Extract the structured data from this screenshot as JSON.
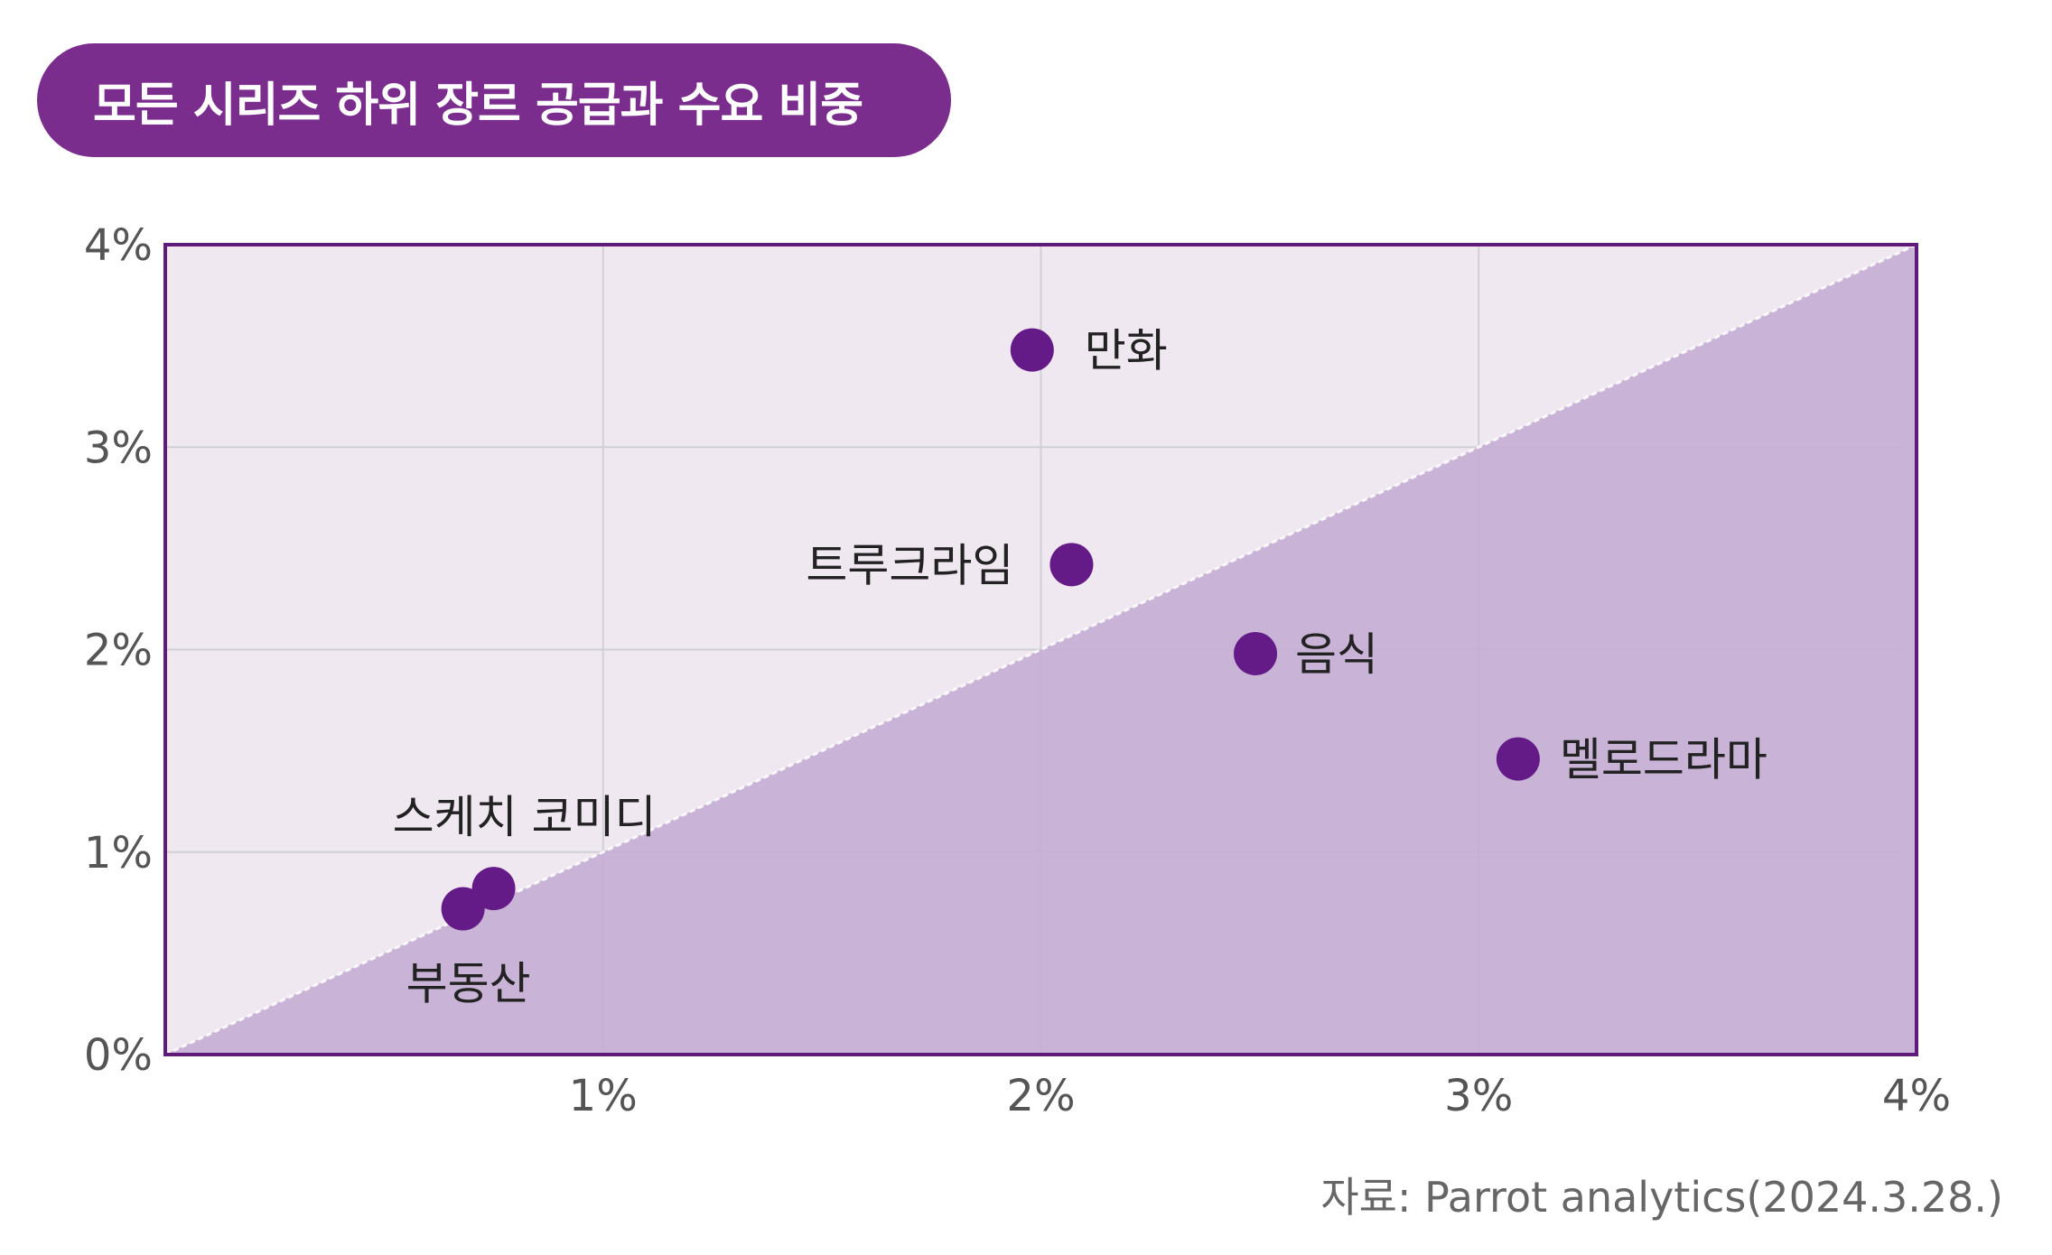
{
  "title": "모든 시리즈 하위 장르 공급과 수요 비중",
  "source": "자료: Parrot analytics(2024.3.28.)",
  "colors": {
    "title_bg": "#7b2d8e",
    "plot_bg": "#f0e8f1",
    "lower_region": "#c6aed4",
    "frame": "#5f1a7a",
    "point": "#641a87",
    "grid": "#cfcfd6"
  },
  "chart_data": {
    "type": "scatter",
    "title": "모든 시리즈 하위 장르 공급과 수요 비중",
    "xlabel": "",
    "ylabel": "",
    "xlim": [
      0,
      4
    ],
    "ylim": [
      0,
      4
    ],
    "x_ticks": [
      "1%",
      "2%",
      "3%",
      "4%"
    ],
    "y_ticks": [
      "0%",
      "1%",
      "2%",
      "3%",
      "4%"
    ],
    "grid": true,
    "diagonal_reference": true,
    "points": [
      {
        "label": "만화",
        "x": 1.98,
        "y": 3.48
      },
      {
        "label": "트루크라임",
        "x": 2.07,
        "y": 2.42
      },
      {
        "label": "음식",
        "x": 2.49,
        "y": 1.98
      },
      {
        "label": "멜로드라마",
        "x": 3.09,
        "y": 1.46
      },
      {
        "label": "스케치 코미디",
        "x": 0.75,
        "y": 0.82
      },
      {
        "label": "부동산",
        "x": 0.68,
        "y": 0.72
      }
    ]
  }
}
